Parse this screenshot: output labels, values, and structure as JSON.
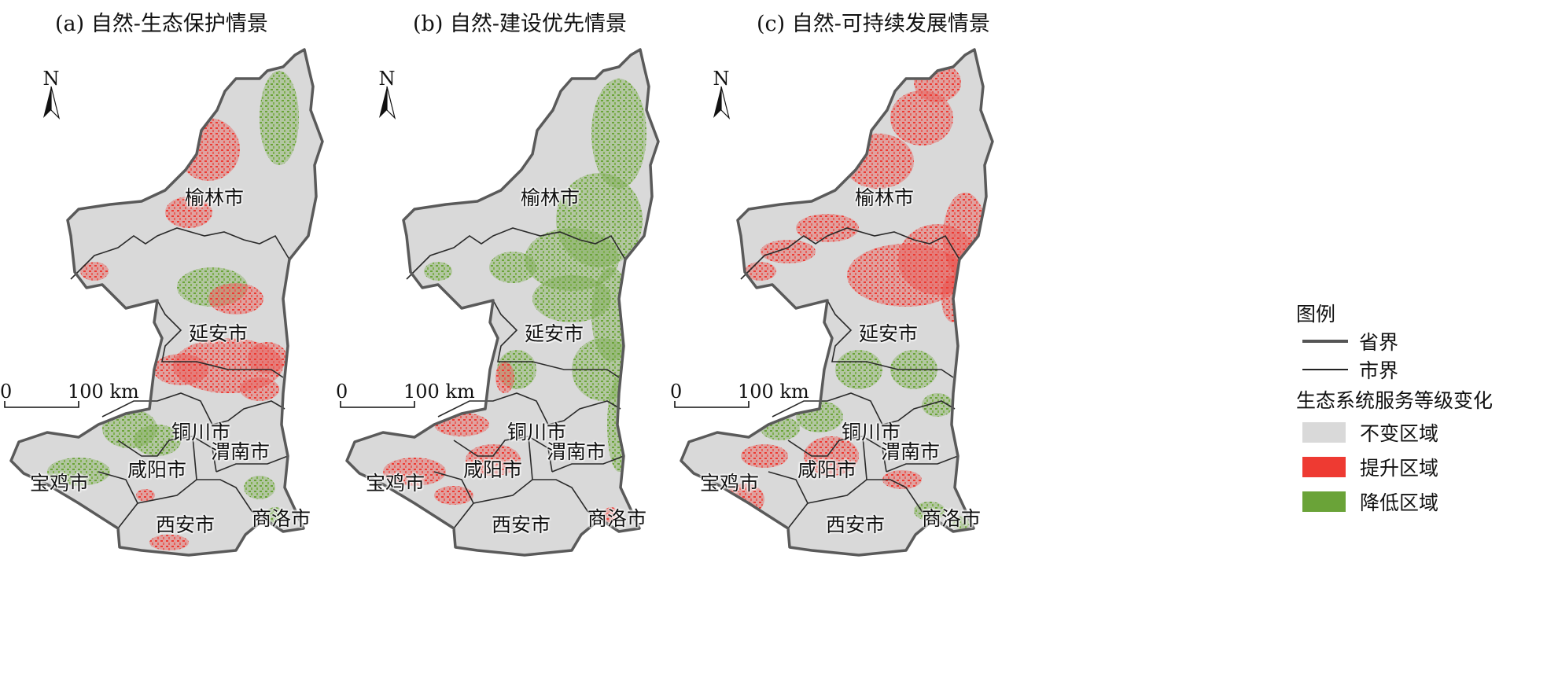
{
  "panels": [
    {
      "title": "(a) 自然-生态保护情景"
    },
    {
      "title": "(b) 自然-建设优先情景"
    },
    {
      "title": "(c) 自然-可持续发展情景"
    }
  ],
  "cities": {
    "yulin": "榆林市",
    "yanan": "延安市",
    "tongchuan": "铜川市",
    "weinan": "渭南市",
    "xianyang": "咸阳市",
    "baoji": "宝鸡市",
    "xian": "西安市",
    "shangluo": "商洛市"
  },
  "north_label": "N",
  "scale": {
    "start": "0",
    "end": "100 km"
  },
  "legend": {
    "title": "图例",
    "province_boundary": "省界",
    "city_boundary": "市界",
    "change_title": "生态系统服务等级变化",
    "items": [
      {
        "label": "不变区域",
        "color": "#d9d9d9"
      },
      {
        "label": "提升区域",
        "color": "#ee3a32"
      },
      {
        "label": "降低区域",
        "color": "#6aa338"
      }
    ]
  },
  "colors": {
    "unchanged": "#d9d9d9",
    "improved": "#ee3a32",
    "degraded": "#6aa338",
    "province_line": "#5a5a5a",
    "city_line": "#2a2a2a"
  }
}
